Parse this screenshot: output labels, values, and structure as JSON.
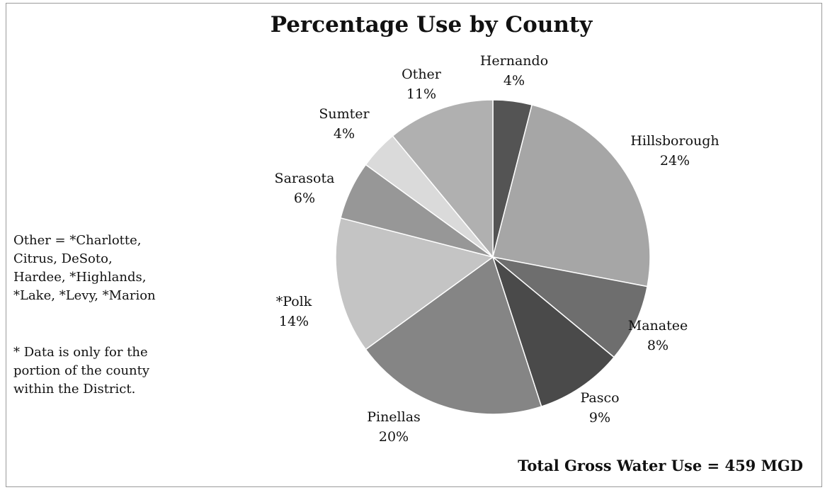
{
  "chart_data": {
    "type": "pie",
    "title": "Percentage Use by County",
    "slices": [
      {
        "label": "Hernando",
        "value": 4,
        "value_label": "4%",
        "color": "#545454"
      },
      {
        "label": "Hillsborough",
        "value": 24,
        "value_label": "24%",
        "color": "#a6a6a6"
      },
      {
        "label": "Manatee",
        "value": 8,
        "value_label": "8%",
        "color": "#6e6e6e"
      },
      {
        "label": "Pasco",
        "value": 9,
        "value_label": "9%",
        "color": "#4a4a4a"
      },
      {
        "label": "Pinellas",
        "value": 20,
        "value_label": "20%",
        "color": "#858585"
      },
      {
        "label": "*Polk",
        "value": 14,
        "value_label": "14%",
        "color": "#c4c4c4"
      },
      {
        "label": "Sarasota",
        "value": 6,
        "value_label": "6%",
        "color": "#979797"
      },
      {
        "label": "Sumter",
        "value": 4,
        "value_label": "4%",
        "color": "#dadada"
      },
      {
        "label": "Other",
        "value": 11,
        "value_label": "11%",
        "color": "#b0b0b0"
      }
    ],
    "start_angle": "12 o'clock",
    "direction": "clockwise",
    "legend": "none"
  },
  "notes": {
    "other_definition": [
      "Other = *Charlotte,",
      "Citrus, DeSoto,",
      "Hardee, *Highlands,",
      "*Lake, *Levy, *Marion"
    ],
    "asterisk_note": [
      "* Data is only for the",
      "portion of the county",
      "within the District."
    ]
  },
  "total": "Total Gross Water Use = 459 MGD"
}
